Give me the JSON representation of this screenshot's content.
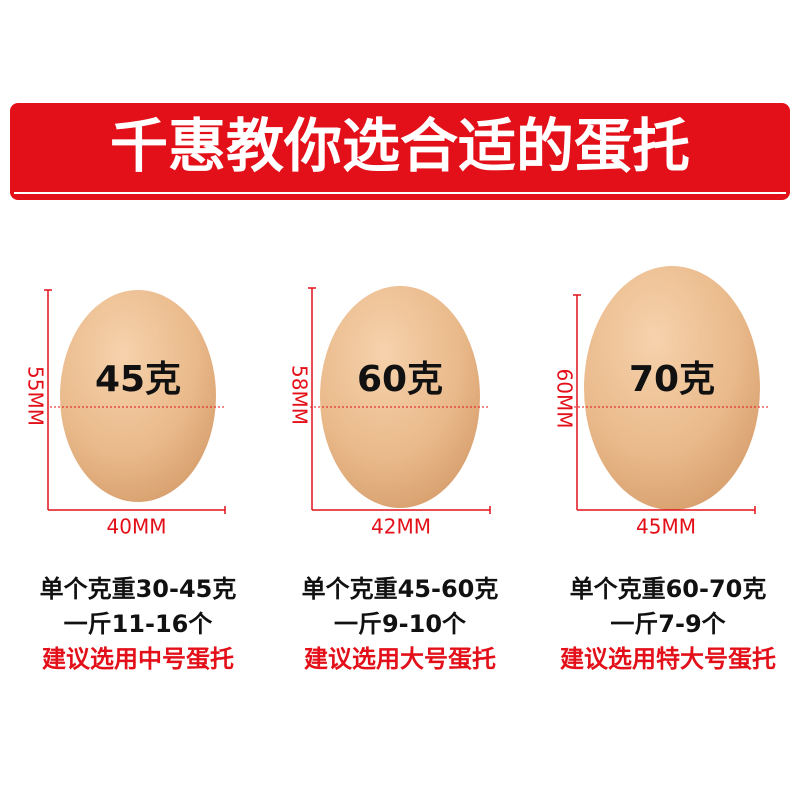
{
  "title": "千惠教你选合适的蛋托",
  "eggs": [
    {
      "weight": "45克",
      "height": "55MM",
      "width": "40MM",
      "lines": [
        "单个克重30-45克",
        "一斤11-16个",
        "建议选用中号蛋托"
      ]
    },
    {
      "weight": "60克",
      "height": "58MM",
      "width": "42MM",
      "lines": [
        "单个克重45-60克",
        "一斤9-10个",
        "建议选用大号蛋托"
      ]
    },
    {
      "weight": "70克",
      "height": "60MM",
      "width": "45MM",
      "lines": [
        "单个克重60-70克",
        "一斤7-9个",
        "建议选用特大号蛋托"
      ]
    }
  ]
}
